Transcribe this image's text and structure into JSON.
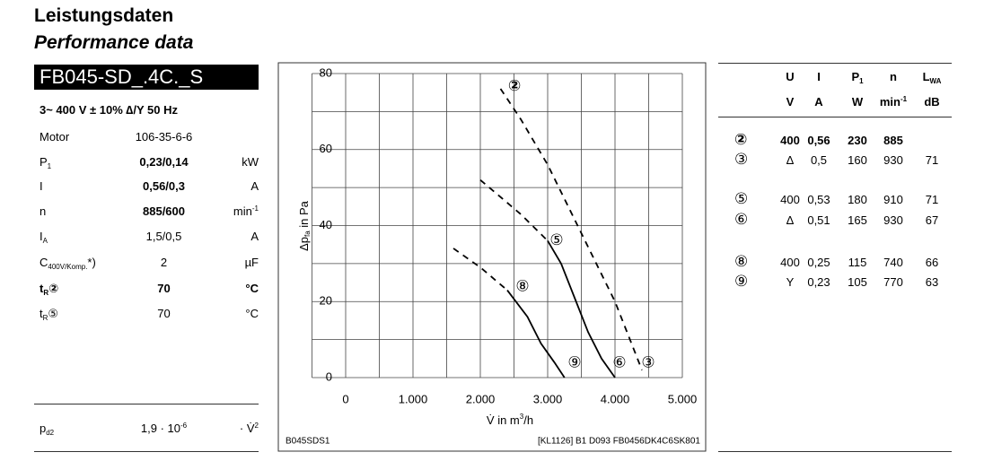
{
  "title": "Leistungsdaten",
  "subtitle": "Performance data",
  "model": "FB045-SD_.4C._S",
  "supply": "3~ 400 V ± 10% ∆/Y 50 Hz",
  "specs": [
    {
      "label": "Motor",
      "value": "106-35-6-6"
    },
    {
      "label": "P",
      "sub": "1",
      "value": "0,23/0,14",
      "unit": "kW",
      "bold": [
        "value"
      ]
    },
    {
      "label": "I",
      "value": "0,56/0,3",
      "unit": "A",
      "bold": [
        "value"
      ]
    },
    {
      "label": "n",
      "value": "885/600",
      "unit": "min",
      "unit_sup": "-1",
      "bold": [
        "value"
      ]
    },
    {
      "label": "I",
      "sub": "A",
      "value": "1,5/0,5",
      "unit": "A"
    },
    {
      "label": "C",
      "sub": "400V/Komp.",
      "suffix": "*)",
      "value": "2",
      "unit": "µF"
    },
    {
      "label": "t",
      "sub": "R",
      "mark": "②",
      "value": "70",
      "unit": "°C",
      "bold": [
        "label",
        "value",
        "unit"
      ]
    },
    {
      "label": "t",
      "sub": "R",
      "mark": "⑤",
      "value": "70",
      "unit": "°C"
    }
  ],
  "pd2": {
    "label": "p",
    "sub": "d2",
    "value": "1,9 · 10",
    "value_sup": "-6",
    "unit": "· V̇",
    "unit_sup": "2"
  },
  "chart_data": {
    "type": "line",
    "y_label": "Δp",
    "y_label_sub": "fa",
    "y_label_rest": " in Pa",
    "x_label": "V̇ in m",
    "x_label_sup": "3",
    "x_label_rest": "/h",
    "code_left": "B045SDS1",
    "code_right": "[KL1126] B1 D093 FB0456DK4C6SK801",
    "xlim": [
      -500,
      5000
    ],
    "ylim": [
      0,
      80
    ],
    "xticks": [
      0,
      {
        "value": 1000,
        "label": "1.000"
      },
      {
        "value": 2000,
        "label": "2.000"
      },
      {
        "value": 3000,
        "label": "3.000"
      },
      {
        "value": 4000,
        "label": "4.000"
      },
      {
        "value": 5000,
        "label": "5.000"
      }
    ],
    "yticks": [
      0,
      20,
      40,
      60,
      80
    ],
    "xgrid": [
      -500,
      0,
      500,
      1000,
      1500,
      2000,
      2500,
      3000,
      3500,
      4000,
      4500,
      5000
    ],
    "ygrid": [
      0,
      10,
      20,
      30,
      40,
      50,
      60,
      70,
      80
    ],
    "series": [
      {
        "dash": true,
        "x": [
          2300,
          2600,
          3000,
          3500,
          4000,
          4400
        ],
        "values": [
          76,
          68,
          56,
          38,
          20,
          2
        ]
      },
      {
        "dash": true,
        "x": [
          2000,
          2600,
          3000
        ],
        "values": [
          52,
          43,
          36
        ]
      },
      {
        "dash": false,
        "x": [
          3000,
          3200,
          3400,
          3600,
          3800,
          4000
        ],
        "values": [
          36,
          30,
          21,
          12,
          5,
          0
        ]
      },
      {
        "dash": true,
        "x": [
          1600,
          2000,
          2400
        ],
        "values": [
          34,
          29,
          23
        ]
      },
      {
        "dash": false,
        "x": [
          2400,
          2700,
          2900,
          3100,
          3250
        ],
        "values": [
          23,
          16,
          9,
          4,
          0
        ]
      }
    ],
    "annotations": [
      {
        "text": "②",
        "x": 2507,
        "y": 76.6,
        "bold": true
      },
      {
        "text": "③",
        "x": 4493,
        "y": 3.8
      },
      {
        "text": "⑤",
        "x": 3133,
        "y": 36
      },
      {
        "text": "⑥",
        "x": 4067,
        "y": 3.8
      },
      {
        "text": "⑧",
        "x": 2627,
        "y": 23.8
      },
      {
        "text": "⑨",
        "x": 3400,
        "y": 3.8
      }
    ]
  },
  "table": {
    "header": [
      {
        "text": "U"
      },
      {
        "text": "I"
      },
      {
        "text": "P",
        "sub": "1"
      },
      {
        "text": "n"
      },
      {
        "text": "L",
        "sub": "WA"
      }
    ],
    "units": [
      {
        "text": "V"
      },
      {
        "text": "A"
      },
      {
        "text": "W"
      },
      {
        "text": "min",
        "sup": "-1"
      },
      {
        "text": "dB"
      }
    ],
    "rows": [
      {
        "id": "②",
        "cells": [
          "400",
          "0,56",
          "230",
          "885"
        ],
        "bold": true
      },
      {
        "id": "③",
        "cells": [
          "Δ",
          "0,5",
          "160",
          "930",
          "71"
        ]
      },
      {
        "id": "⑤",
        "cells": [
          "400",
          "0,53",
          "180",
          "910",
          "71"
        ]
      },
      {
        "id": "⑥",
        "cells": [
          "Δ",
          "0,51",
          "165",
          "930",
          "67"
        ]
      },
      {
        "id": "⑧",
        "cells": [
          "400",
          "0,25",
          "115",
          "740",
          "66"
        ]
      },
      {
        "id": "⑨",
        "cells": [
          "Y",
          "0,23",
          "105",
          "770",
          "63"
        ]
      }
    ]
  }
}
